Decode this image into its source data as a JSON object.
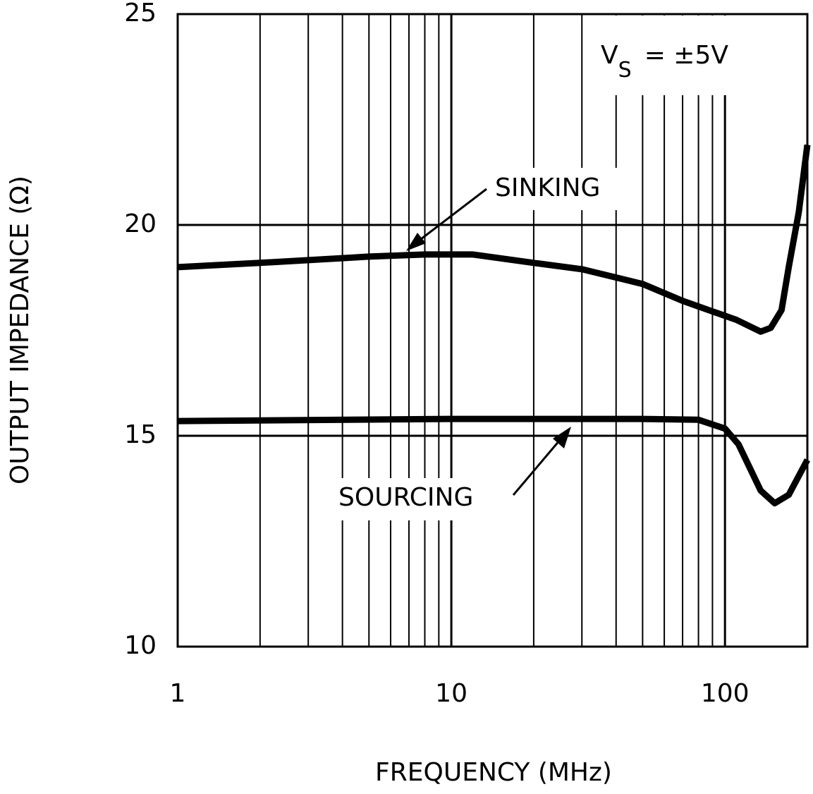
{
  "chart_data": {
    "type": "line",
    "x_label": "FREQUENCY (MHz)",
    "y_label": "OUTPUT IMPEDANCE (Ω)",
    "x_log": true,
    "xlim": [
      1,
      200
    ],
    "xticks": [
      1,
      10,
      100
    ],
    "x_minor_grid": [
      2,
      3,
      4,
      5,
      6,
      7,
      8,
      9,
      20,
      30,
      40,
      50,
      60,
      70,
      80,
      90
    ],
    "ylim": [
      10,
      25
    ],
    "yticks": [
      10,
      15,
      20,
      25
    ],
    "y_grid": [
      15,
      20
    ],
    "series": [
      {
        "name": "SINKING",
        "color": "#000000",
        "x": [
          1,
          2,
          5,
          8,
          10,
          12,
          20,
          30,
          50,
          70,
          90,
          110,
          135,
          147,
          161,
          171,
          186,
          200
        ],
        "values": [
          19.0,
          19.1,
          19.25,
          19.3,
          19.3,
          19.3,
          19.1,
          18.95,
          18.6,
          18.2,
          17.95,
          17.75,
          17.47,
          17.56,
          17.98,
          19.0,
          20.3,
          21.9
        ]
      },
      {
        "name": "SOURCING",
        "color": "#000000",
        "x": [
          1,
          10,
          30,
          50,
          80,
          100,
          112,
          135,
          152,
          171,
          200
        ],
        "values": [
          15.35,
          15.4,
          15.4,
          15.4,
          15.38,
          15.17,
          14.8,
          13.7,
          13.4,
          13.6,
          14.43
        ]
      }
    ],
    "annotation": {
      "text": "V",
      "subscript": "S",
      "suffix": "= ±5V"
    }
  }
}
